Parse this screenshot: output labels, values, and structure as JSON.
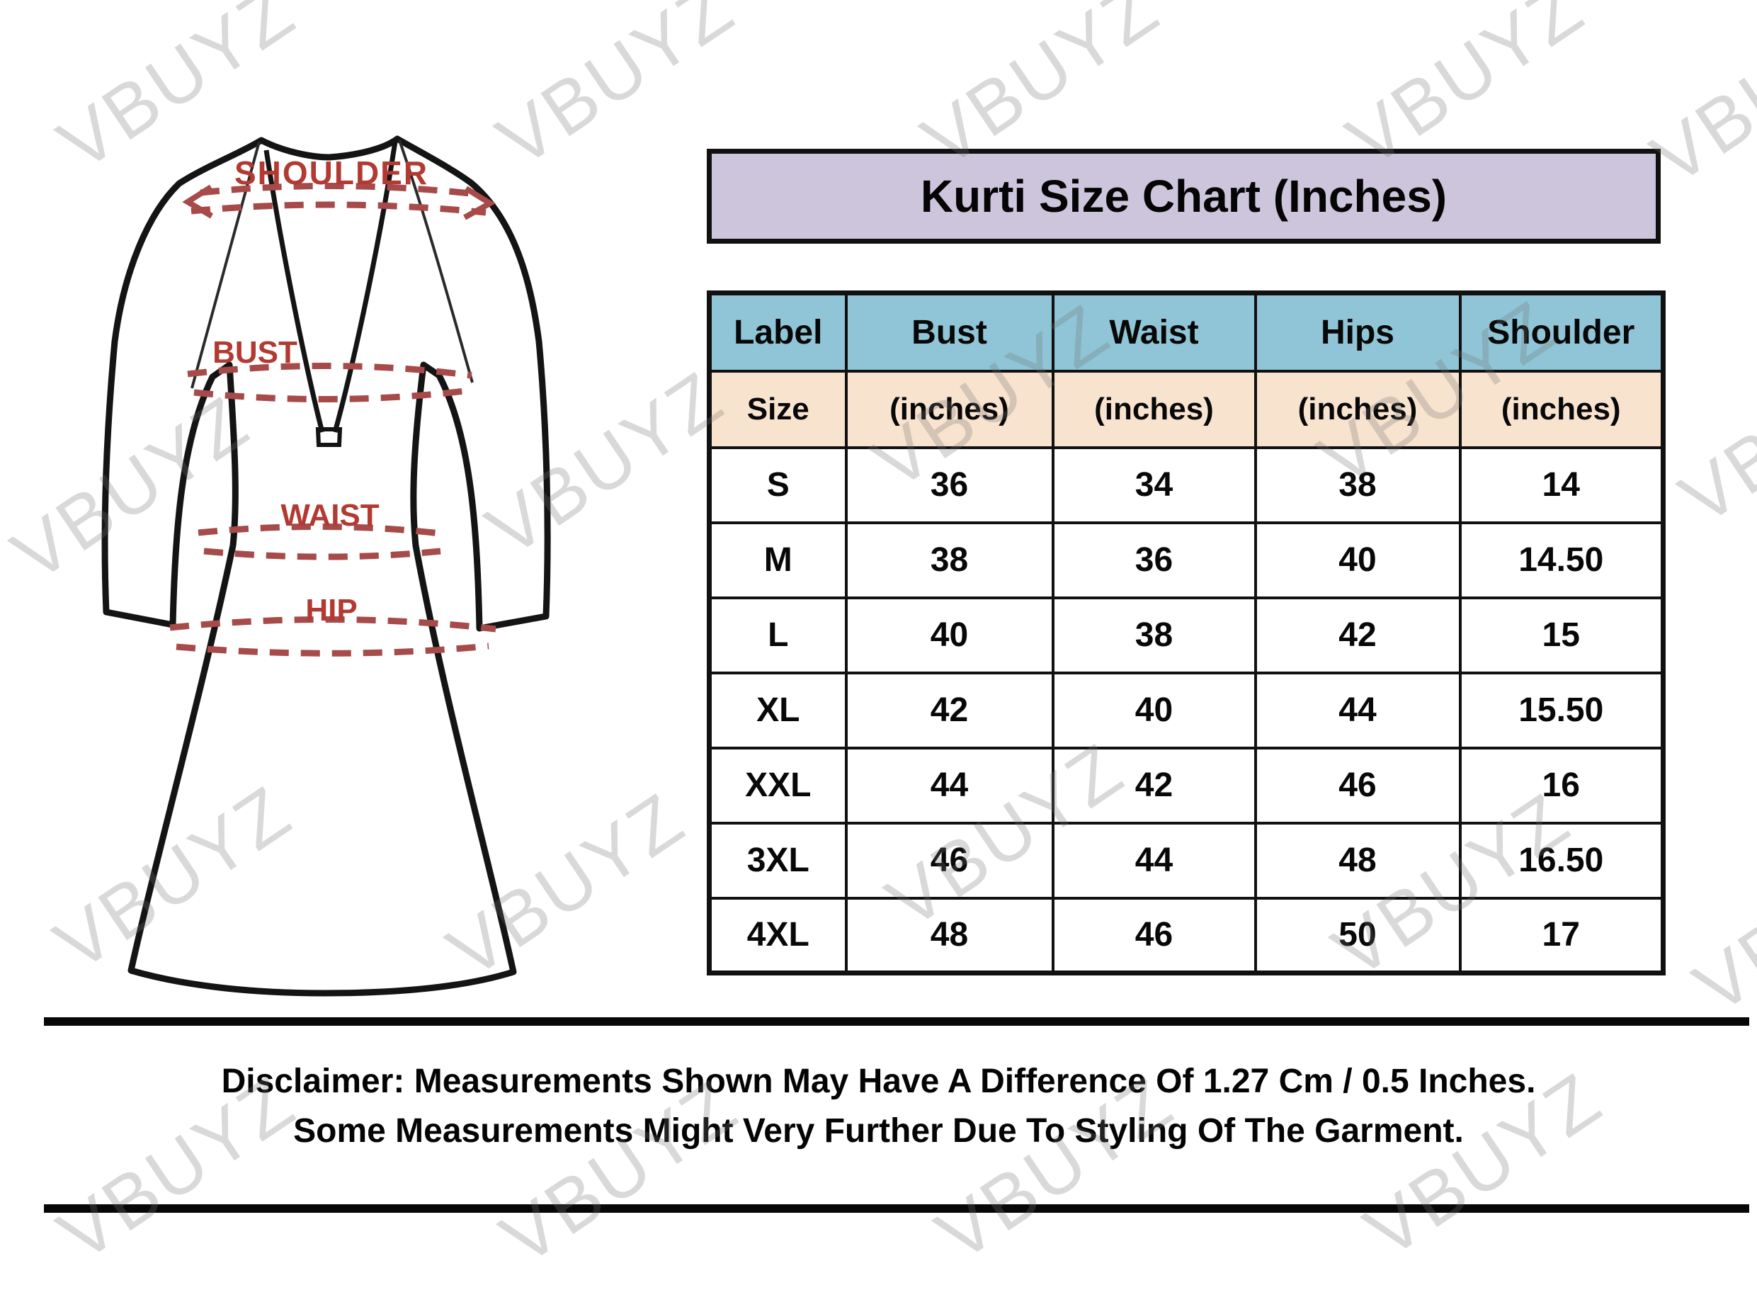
{
  "watermark": {
    "text": "VBUYZ"
  },
  "title": {
    "text": "Kurti Size Chart (Inches)",
    "bg": "#cdc5db"
  },
  "diagram": {
    "labels": {
      "shoulder": "SHOULDER",
      "bust": "BUST",
      "waist": "WAIST",
      "hip": "HIP"
    },
    "label_color": "#b23a32",
    "dash_color": "#a64a4a",
    "outline_color": "#141414"
  },
  "chart_data": {
    "type": "table",
    "title": "Kurti Size Chart (Inches)",
    "columns": [
      "Label",
      "Bust",
      "Waist",
      "Hips",
      "Shoulder"
    ],
    "subheaders": [
      "Size",
      "(inches)",
      "(inches)",
      "(inches)",
      "(inches)"
    ],
    "rows": [
      [
        "S",
        "36",
        "34",
        "38",
        "14"
      ],
      [
        "M",
        "38",
        "36",
        "40",
        "14.50"
      ],
      [
        "L",
        "40",
        "38",
        "42",
        "15"
      ],
      [
        "XL",
        "42",
        "40",
        "44",
        "15.50"
      ],
      [
        "XXL",
        "44",
        "42",
        "46",
        "16"
      ],
      [
        "3XL",
        "46",
        "44",
        "48",
        "16.50"
      ],
      [
        "4XL",
        "48",
        "46",
        "50",
        "17"
      ]
    ],
    "header_bg": "#8fc5d6",
    "subheader_bg": "#f8e3cf"
  },
  "disclaimer": {
    "line1": "Disclaimer: Measurements Shown May Have A Difference Of 1.27 Cm / 0.5 Inches.",
    "line2": "Some Measurements Might Very Further Due To Styling Of The Garment."
  }
}
